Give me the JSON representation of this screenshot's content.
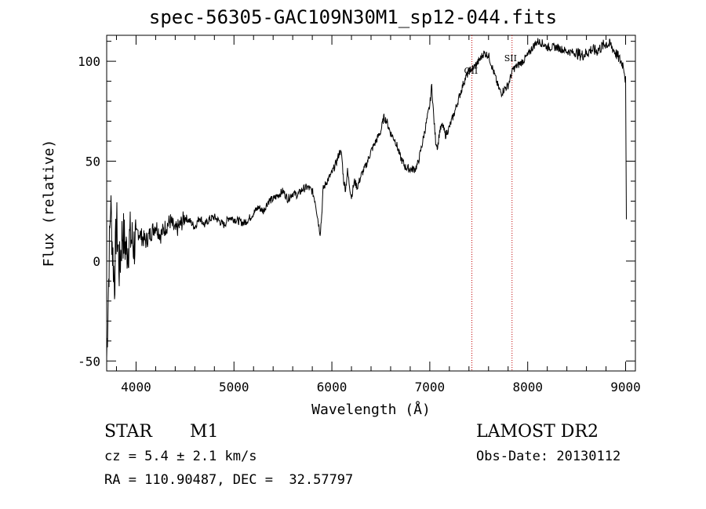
{
  "chart_data": {
    "type": "line",
    "title": "spec-56305-GAC109N30M1_sp12-044.fits",
    "xlabel": "Wavelength (Å)",
    "ylabel": "Flux (relative)",
    "xlim": [
      3700,
      9100
    ],
    "ylim": [
      -55,
      113
    ],
    "x_ticks": [
      4000,
      5000,
      6000,
      7000,
      8000,
      9000
    ],
    "y_ticks": [
      -50,
      0,
      50,
      100
    ],
    "grid": false,
    "series": [
      {
        "x": [
          3700,
          3740,
          3760,
          3780,
          3800,
          3830,
          3860,
          3900,
          3940,
          3980,
          4020,
          4060,
          4100,
          4150,
          4200,
          4250,
          4300,
          4350,
          4400,
          4450,
          4500,
          4550,
          4600,
          4650,
          4700,
          4750,
          4800,
          4850,
          4900,
          4950,
          5000,
          5050,
          5100,
          5150,
          5200,
          5250,
          5300,
          5350,
          5400,
          5450,
          5500,
          5550,
          5600,
          5650,
          5700,
          5750,
          5800,
          5830,
          5860,
          5880,
          5895,
          5910,
          5930,
          5950,
          6000,
          6050,
          6080,
          6100,
          6120,
          6140,
          6160,
          6180,
          6200,
          6230,
          6260,
          6300,
          6350,
          6400,
          6450,
          6500,
          6530,
          6560,
          6600,
          6650,
          6700,
          6750,
          6800,
          6850,
          6880,
          6920,
          6960,
          7000,
          7020,
          7040,
          7060,
          7080,
          7100,
          7130,
          7160,
          7200,
          7250,
          7300,
          7350,
          7400,
          7450,
          7500,
          7550,
          7600,
          7650,
          7700,
          7730,
          7760,
          7800,
          7850,
          7900,
          7950,
          8000,
          8050,
          8100,
          8150,
          8200,
          8300,
          8400,
          8500,
          8550,
          8600,
          8650,
          8700,
          8750,
          8800,
          8850,
          8900,
          8950,
          8980,
          9000,
          9010
        ],
        "y": [
          -48,
          30,
          5,
          -10,
          20,
          -5,
          15,
          5,
          12,
          8,
          15,
          12,
          10,
          14,
          18,
          13,
          17,
          20,
          15,
          18,
          22,
          20,
          17,
          22,
          18,
          21,
          22,
          20,
          18,
          22,
          21,
          20,
          19,
          21,
          24,
          27,
          25,
          30,
          31,
          33,
          35,
          31,
          34,
          33,
          36,
          37,
          35,
          30,
          20,
          14,
          22,
          36,
          38,
          40,
          44,
          50,
          55,
          53,
          40,
          36,
          45,
          38,
          32,
          40,
          37,
          43,
          48,
          55,
          60,
          65,
          72,
          70,
          64,
          60,
          52,
          47,
          46,
          46,
          49,
          58,
          68,
          78,
          88,
          72,
          60,
          57,
          65,
          68,
          63,
          67,
          74,
          82,
          90,
          95,
          97,
          100,
          104,
          103,
          95,
          87,
          84,
          86,
          88,
          96,
          98,
          100,
          103,
          107,
          110,
          109,
          107,
          107,
          105,
          104,
          103,
          104,
          106,
          105,
          107,
          109,
          108,
          104,
          100,
          98,
          90,
          0
        ]
      }
    ],
    "markers": [
      {
        "label": "OII",
        "x": 7430
      },
      {
        "label": "SII",
        "x": 7840
      }
    ],
    "annotations": {
      "object_type": "STAR",
      "subclass": "M1",
      "survey": "LAMOST DR2",
      "cz": "cz = 5.4 ± 2.1 km/s",
      "obs_date": "Obs-Date: 20130112",
      "radec": "RA = 110.90487, DEC =  32.57797"
    },
    "marker_color": "#c00000"
  }
}
